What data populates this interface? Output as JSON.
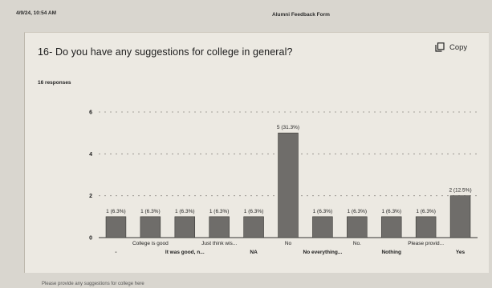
{
  "print_header": {
    "date": "4/9/24, 10:54 AM",
    "form_title": "Alumni Feedback Form"
  },
  "question": {
    "title": "16- Do you have any suggestions for college in general?",
    "copy_label": "Copy",
    "responses": "16 responses"
  },
  "chart_data": {
    "type": "bar",
    "categories": [
      "-",
      "College is good",
      "It was good, n...",
      "Just think wis...",
      "NA",
      "No",
      "No everything...",
      "No.",
      "Nothing",
      "Please provid...",
      "Yes"
    ],
    "values": [
      1,
      1,
      1,
      1,
      1,
      5,
      1,
      1,
      1,
      1,
      2
    ],
    "value_labels": [
      "1 (6.3%)",
      "1 (6.3%)",
      "1 (6.3%)",
      "1 (6.3%)",
      "1 (6.3%)",
      "5 (31.3%)",
      "1 (6.3%)",
      "1 (6.3%)",
      "1 (6.3%)",
      "1 (6.3%)",
      "2 (12.5%)"
    ],
    "y_ticks": [
      0,
      2,
      4,
      6
    ],
    "ylim": [
      0,
      6
    ],
    "grid": true,
    "bar_color": "#6f6d6a"
  },
  "footer": {
    "text": "Please provide any suggestions for college here"
  }
}
